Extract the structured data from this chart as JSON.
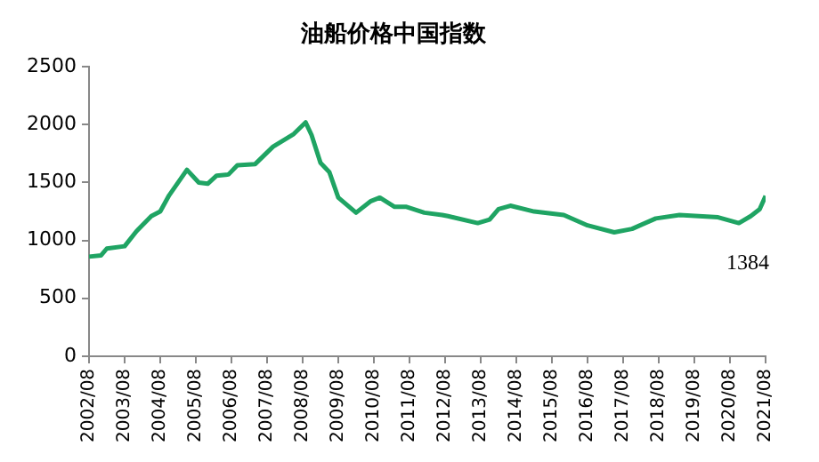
{
  "chart_data": {
    "type": "line",
    "title": "油船价格中国指数",
    "x": [
      "2002-08",
      "2002-12",
      "2003-02",
      "2003-08",
      "2003-12",
      "2004-05",
      "2004-08",
      "2004-11",
      "2005-05",
      "2005-09",
      "2005-12",
      "2006-03",
      "2006-07",
      "2006-10",
      "2007-04",
      "2007-10",
      "2008-05",
      "2008-09",
      "2008-11",
      "2009-02",
      "2009-05",
      "2009-08",
      "2010-02",
      "2010-07",
      "2010-10",
      "2011-03",
      "2011-07",
      "2012-01",
      "2012-07",
      "2012-09",
      "2013-07",
      "2013-11",
      "2014-02",
      "2014-06",
      "2015-02",
      "2015-12",
      "2016-08",
      "2017-05",
      "2017-11",
      "2018-07",
      "2019-03",
      "2020-04",
      "2020-11",
      "2021-03",
      "2021-06",
      "2021-08"
    ],
    "series": [
      {
        "color": "#1fa463",
        "values": [
          860,
          870,
          930,
          950,
          1080,
          1210,
          1250,
          1390,
          1610,
          1500,
          1490,
          1560,
          1570,
          1650,
          1660,
          1810,
          1920,
          2020,
          1910,
          1670,
          1590,
          1370,
          1240,
          1340,
          1370,
          1290,
          1290,
          1240,
          1220,
          1210,
          1150,
          1180,
          1270,
          1300,
          1250,
          1220,
          1130,
          1070,
          1100,
          1190,
          1220,
          1200,
          1150,
          1210,
          1270,
          1384
        ]
      }
    ],
    "xlim": [
      "2002-08",
      "2021-08"
    ],
    "xticks": [
      {
        "value": "2002-08",
        "label": "2002/08"
      },
      {
        "value": "2003-08",
        "label": "2003/08"
      },
      {
        "value": "2004-08",
        "label": "2004/08"
      },
      {
        "value": "2005-08",
        "label": "2005/08"
      },
      {
        "value": "2006-08",
        "label": "2006/08"
      },
      {
        "value": "2007-08",
        "label": "2007/08"
      },
      {
        "value": "2008-08",
        "label": "2008/08"
      },
      {
        "value": "2009-08",
        "label": "2009/08"
      },
      {
        "value": "2010-08",
        "label": "2010/08"
      },
      {
        "value": "2011-08",
        "label": "2011/08"
      },
      {
        "value": "2012-08",
        "label": "2012/08"
      },
      {
        "value": "2013-08",
        "label": "2013/08"
      },
      {
        "value": "2014-08",
        "label": "2014/08"
      },
      {
        "value": "2015-08",
        "label": "2015/08"
      },
      {
        "value": "2016-08",
        "label": "2016/08"
      },
      {
        "value": "2017-08",
        "label": "2017/08"
      },
      {
        "value": "2018-08",
        "label": "2018/08"
      },
      {
        "value": "2019-08",
        "label": "2019/08"
      },
      {
        "value": "2020-08",
        "label": "2020/08"
      },
      {
        "value": "2021-08",
        "label": "2021/08"
      }
    ],
    "ylim": [
      0,
      2500
    ],
    "yticks": [
      0,
      500,
      1000,
      1500,
      2000,
      2500
    ],
    "annotations": [
      {
        "text": "1384",
        "x": "2021-08",
        "y": 1384
      }
    ],
    "grid": false,
    "legend": false,
    "marker": "none",
    "line_style": "solid"
  }
}
